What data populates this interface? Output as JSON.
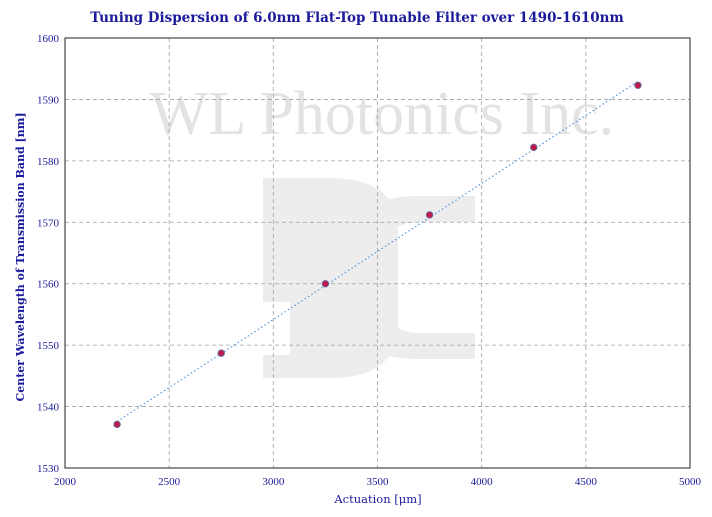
{
  "chart_data": {
    "type": "scatter",
    "title": "Tuning Dispersion of 6.0nm Flat-Top Tunable Filter over 1490-1610nm",
    "xlabel": "Actuation [μm]",
    "ylabel": "Center Wavelength of Transmission Band [nm]",
    "xlim": [
      2000,
      5000
    ],
    "ylim": [
      1530,
      1600
    ],
    "xticks": [
      2000,
      2500,
      3000,
      3500,
      4000,
      4500,
      5000
    ],
    "yticks": [
      1530,
      1540,
      1550,
      1560,
      1570,
      1580,
      1590,
      1600
    ],
    "grid": true,
    "trendline": {
      "type": "linear",
      "style": "dotted",
      "color": "#4a90d9"
    },
    "series": [
      {
        "marker_color": "#c0184a",
        "x": [
          2250,
          2750,
          3250,
          3750,
          4250,
          4750
        ],
        "y": [
          1537.1,
          1548.7,
          1560.0,
          1571.2,
          1582.2,
          1592.3
        ]
      }
    ]
  },
  "watermark": {
    "text": "WL Photonics Inc.",
    "color": "#e3e3e3"
  }
}
